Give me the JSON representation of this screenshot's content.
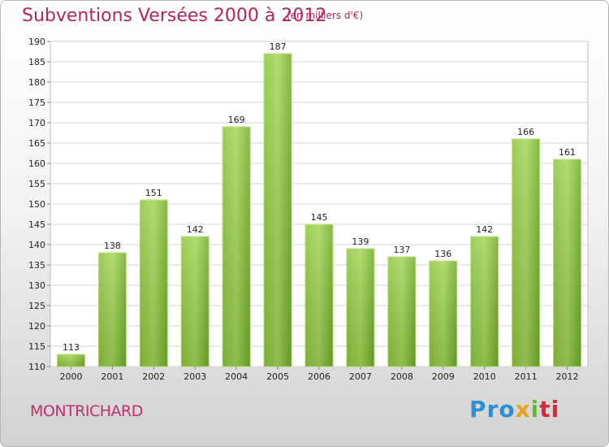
{
  "chart_data": {
    "type": "bar",
    "title": "Subventions Versées 2000 à 2012",
    "subtitle": "(en milliers d'€)",
    "xlabel": "",
    "ylabel": "",
    "categories": [
      "2000",
      "2001",
      "2002",
      "2003",
      "2004",
      "2005",
      "2006",
      "2007",
      "2008",
      "2009",
      "2010",
      "2011",
      "2012"
    ],
    "values": [
      113,
      138,
      151,
      142,
      169,
      187,
      145,
      139,
      137,
      136,
      142,
      166,
      161
    ],
    "ylim": [
      110,
      190
    ],
    "yticks": [
      110,
      115,
      120,
      125,
      130,
      135,
      140,
      145,
      150,
      155,
      160,
      165,
      170,
      175,
      180,
      185,
      190
    ],
    "grid": true,
    "bar_color": "#7dba2e",
    "legend": "none"
  },
  "footer": {
    "commune": "MONTRICHARD",
    "brand_parts": [
      "Pro",
      "x",
      "i",
      "ti"
    ]
  }
}
